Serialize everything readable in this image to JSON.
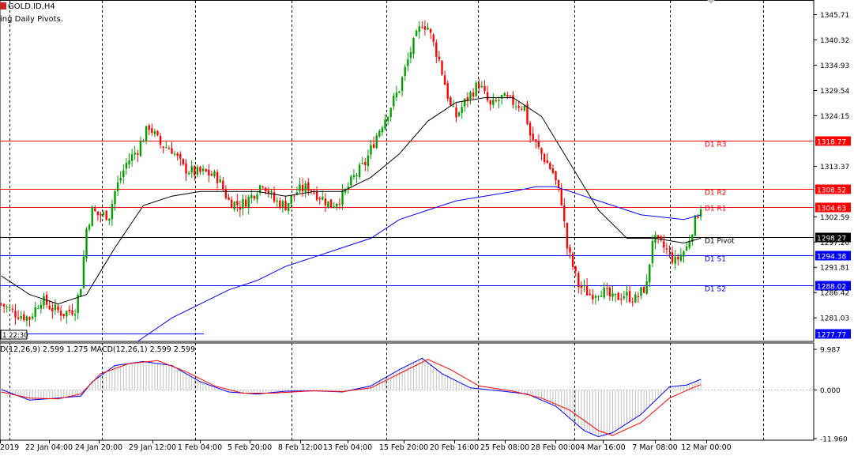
{
  "header": {
    "symbol_title": "GOLD.ID,H4",
    "indicator_title": "ing Daily Pivots."
  },
  "macd": {
    "label": "D(12,26,9) 2.599 1.275 MACD(12,26,1) 2.599 2.599",
    "axis_ticks": [
      "9.987",
      "0.000",
      "-11.960"
    ]
  },
  "colors": {
    "bull": "#00a000",
    "bear": "#ff0000",
    "ma_fast": "#000000",
    "ma_slow": "#0000ff",
    "pivot": "#000000",
    "resistance": "#ff0000",
    "support": "#0000ff",
    "macd_line": "#0000ff",
    "signal_line": "#ff0000",
    "histogram": "#c0c0c0"
  },
  "chart_data": {
    "type": "candlestick",
    "title": "GOLD.ID,H4",
    "ylim": [
      1276,
      1348
    ],
    "price_ticks": [
      "1345.71",
      "1340.32",
      "1334.93",
      "1329.54",
      "1324.15",
      "1318.77",
      "1313.37",
      "1308.52",
      "1304.63",
      "1302.59",
      "1298.27",
      "1297.20",
      "1294.38",
      "1291.81",
      "1288.02",
      "1286.42",
      "1281.03",
      "1277.77"
    ],
    "x_labels": [
      "2019",
      "22 Jan 04:00",
      "24 Jan 20:00",
      "29 Jan 12:00",
      "1 Feb 04:00",
      "5 Feb 20:00",
      "8 Feb 12:00",
      "13 Feb 04:00",
      "15 Feb 20:00",
      "20 Feb 16:00",
      "25 Feb 08:00",
      "28 Feb 00:00",
      "4 Mar 16:00",
      "7 Mar 08:00",
      "12 Mar 00:00"
    ],
    "current_price": "1304.63",
    "time_marker": "1 22:30",
    "pivots": [
      {
        "name": "D1 R3",
        "value": 1318.77,
        "tag": "1318.77"
      },
      {
        "name": "D1 R2",
        "value": 1308.52,
        "tag": "1308.52"
      },
      {
        "name": "D1 R1",
        "value": 1304.63,
        "tag": "1304.63"
      },
      {
        "name": "D1 Pivot",
        "value": 1298.27,
        "tag": "1298.27"
      },
      {
        "name": "D1 S1",
        "value": 1294.38,
        "tag": "1294.38"
      },
      {
        "name": "D1 S2",
        "value": 1288.02,
        "tag": "1288.02"
      }
    ],
    "support_segment": {
      "value": 1277.77,
      "tag": "1277.77"
    },
    "close_path": [
      [
        0,
        1284
      ],
      [
        5,
        1282
      ],
      [
        10,
        1281
      ],
      [
        14,
        1285
      ],
      [
        18,
        1283
      ],
      [
        22,
        1282
      ],
      [
        26,
        1283
      ],
      [
        28,
        1288
      ],
      [
        30,
        1300
      ],
      [
        32,
        1304
      ],
      [
        34,
        1303
      ],
      [
        36,
        1303
      ],
      [
        38,
        1303
      ],
      [
        40,
        1308
      ],
      [
        44,
        1314
      ],
      [
        48,
        1317
      ],
      [
        52,
        1322
      ],
      [
        56,
        1318
      ],
      [
        60,
        1317
      ],
      [
        64,
        1313
      ],
      [
        68,
        1312
      ],
      [
        72,
        1312
      ],
      [
        76,
        1311
      ],
      [
        80,
        1306
      ],
      [
        84,
        1305
      ],
      [
        88,
        1307
      ],
      [
        92,
        1310
      ],
      [
        96,
        1306
      ],
      [
        100,
        1305
      ],
      [
        104,
        1308
      ],
      [
        108,
        1309
      ],
      [
        112,
        1307
      ],
      [
        116,
        1305
      ],
      [
        120,
        1307
      ],
      [
        124,
        1311
      ],
      [
        128,
        1314
      ],
      [
        132,
        1320
      ],
      [
        136,
        1325
      ],
      [
        140,
        1330
      ],
      [
        144,
        1338
      ],
      [
        148,
        1344
      ],
      [
        150,
        1343
      ],
      [
        154,
        1336
      ],
      [
        158,
        1326
      ],
      [
        160,
        1324
      ],
      [
        164,
        1328
      ],
      [
        168,
        1331
      ],
      [
        172,
        1326
      ],
      [
        176,
        1328
      ],
      [
        180,
        1327
      ],
      [
        184,
        1326
      ],
      [
        186,
        1320
      ],
      [
        190,
        1316
      ],
      [
        194,
        1312
      ],
      [
        197,
        1306
      ],
      [
        199,
        1296
      ],
      [
        203,
        1288
      ],
      [
        207,
        1286
      ],
      [
        211,
        1287
      ],
      [
        215,
        1285
      ],
      [
        219,
        1286
      ],
      [
        223,
        1285
      ],
      [
        227,
        1288
      ],
      [
        229,
        1298
      ],
      [
        233,
        1296
      ],
      [
        237,
        1293
      ],
      [
        241,
        1296
      ],
      [
        243,
        1300
      ],
      [
        246,
        1305
      ]
    ],
    "ma_fast_path": [
      [
        0,
        1290
      ],
      [
        10,
        1286
      ],
      [
        20,
        1284
      ],
      [
        30,
        1286
      ],
      [
        40,
        1296
      ],
      [
        50,
        1305
      ],
      [
        60,
        1307
      ],
      [
        70,
        1308
      ],
      [
        80,
        1308
      ],
      [
        90,
        1308
      ],
      [
        100,
        1307
      ],
      [
        110,
        1308
      ],
      [
        120,
        1308
      ],
      [
        130,
        1311
      ],
      [
        140,
        1316
      ],
      [
        150,
        1323
      ],
      [
        160,
        1327
      ],
      [
        170,
        1328
      ],
      [
        180,
        1328
      ],
      [
        190,
        1324
      ],
      [
        200,
        1314
      ],
      [
        210,
        1304
      ],
      [
        220,
        1298
      ],
      [
        230,
        1298
      ],
      [
        240,
        1297
      ],
      [
        246,
        1298
      ]
    ],
    "ma_slow_path": [
      [
        48,
        1276
      ],
      [
        60,
        1281
      ],
      [
        70,
        1284
      ],
      [
        80,
        1287
      ],
      [
        90,
        1289
      ],
      [
        100,
        1292
      ],
      [
        110,
        1294
      ],
      [
        120,
        1296
      ],
      [
        130,
        1298
      ],
      [
        140,
        1302
      ],
      [
        150,
        1304
      ],
      [
        160,
        1306
      ],
      [
        170,
        1307
      ],
      [
        180,
        1308
      ],
      [
        188,
        1309
      ],
      [
        195,
        1309
      ],
      [
        205,
        1307
      ],
      [
        215,
        1305
      ],
      [
        225,
        1303
      ],
      [
        240,
        1302
      ],
      [
        246,
        1303
      ]
    ],
    "macd_path": [
      [
        0,
        0.1
      ],
      [
        10,
        -2.5
      ],
      [
        20,
        -2.0
      ],
      [
        28,
        -1.5
      ],
      [
        32,
        2.0
      ],
      [
        40,
        6.0
      ],
      [
        50,
        7.0
      ],
      [
        60,
        6.0
      ],
      [
        70,
        2.0
      ],
      [
        80,
        -0.5
      ],
      [
        90,
        -1.0
      ],
      [
        100,
        -0.3
      ],
      [
        110,
        -0.2
      ],
      [
        120,
        -0.5
      ],
      [
        130,
        1.0
      ],
      [
        140,
        5.0
      ],
      [
        148,
        7.8
      ],
      [
        155,
        4.0
      ],
      [
        165,
        0.5
      ],
      [
        175,
        -0.2
      ],
      [
        185,
        -1.0
      ],
      [
        195,
        -4.0
      ],
      [
        205,
        -10.0
      ],
      [
        210,
        -11.5
      ],
      [
        215,
        -10.5
      ],
      [
        225,
        -6.0
      ],
      [
        235,
        0.8
      ],
      [
        241,
        1.2
      ],
      [
        246,
        2.6
      ]
    ],
    "signal_path": [
      [
        0,
        -0.5
      ],
      [
        10,
        -2.0
      ],
      [
        20,
        -2.2
      ],
      [
        28,
        -1.0
      ],
      [
        35,
        4.0
      ],
      [
        45,
        6.5
      ],
      [
        55,
        7.2
      ],
      [
        65,
        4.5
      ],
      [
        75,
        1.0
      ],
      [
        85,
        -0.8
      ],
      [
        95,
        -0.8
      ],
      [
        110,
        -0.2
      ],
      [
        120,
        -0.4
      ],
      [
        130,
        0.5
      ],
      [
        140,
        4.0
      ],
      [
        150,
        7.5
      ],
      [
        158,
        5.0
      ],
      [
        168,
        1.0
      ],
      [
        180,
        -0.3
      ],
      [
        190,
        -2.0
      ],
      [
        200,
        -5.0
      ],
      [
        210,
        -10.0
      ],
      [
        215,
        -11.2
      ],
      [
        225,
        -8.0
      ],
      [
        235,
        -2.0
      ],
      [
        242,
        0.2
      ],
      [
        246,
        1.3
      ]
    ]
  }
}
